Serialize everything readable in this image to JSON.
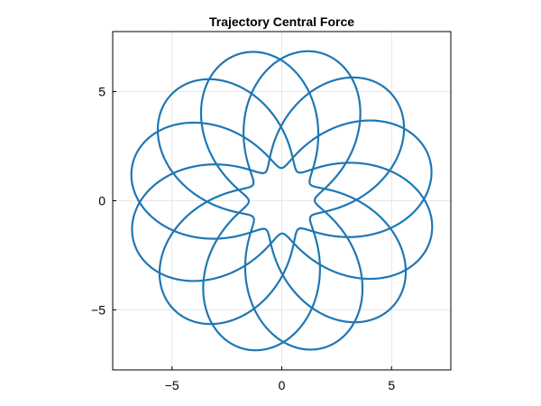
{
  "chart_data": {
    "type": "line",
    "title": "Trajectory Central Force",
    "xlabel": "",
    "ylabel": "",
    "xlim": [
      -7.7,
      7.7
    ],
    "ylim": [
      -7.75,
      7.75
    ],
    "xticks": [
      -5,
      0,
      5
    ],
    "yticks": [
      -5,
      0,
      5
    ],
    "xtick_labels": [
      "−5",
      "0",
      "5"
    ],
    "ytick_labels": [
      "−5",
      "0",
      "5"
    ],
    "grid": true,
    "legend": "none",
    "series": [
      {
        "description_values": "rosette orbit with 12 petals",
        "curve": {
          "r_min": 1.5,
          "r_max": 7.0,
          "petals": 12,
          "first_apoapsis_angle_deg": 105.7
        },
        "color": "#1f77b4"
      }
    ]
  }
}
